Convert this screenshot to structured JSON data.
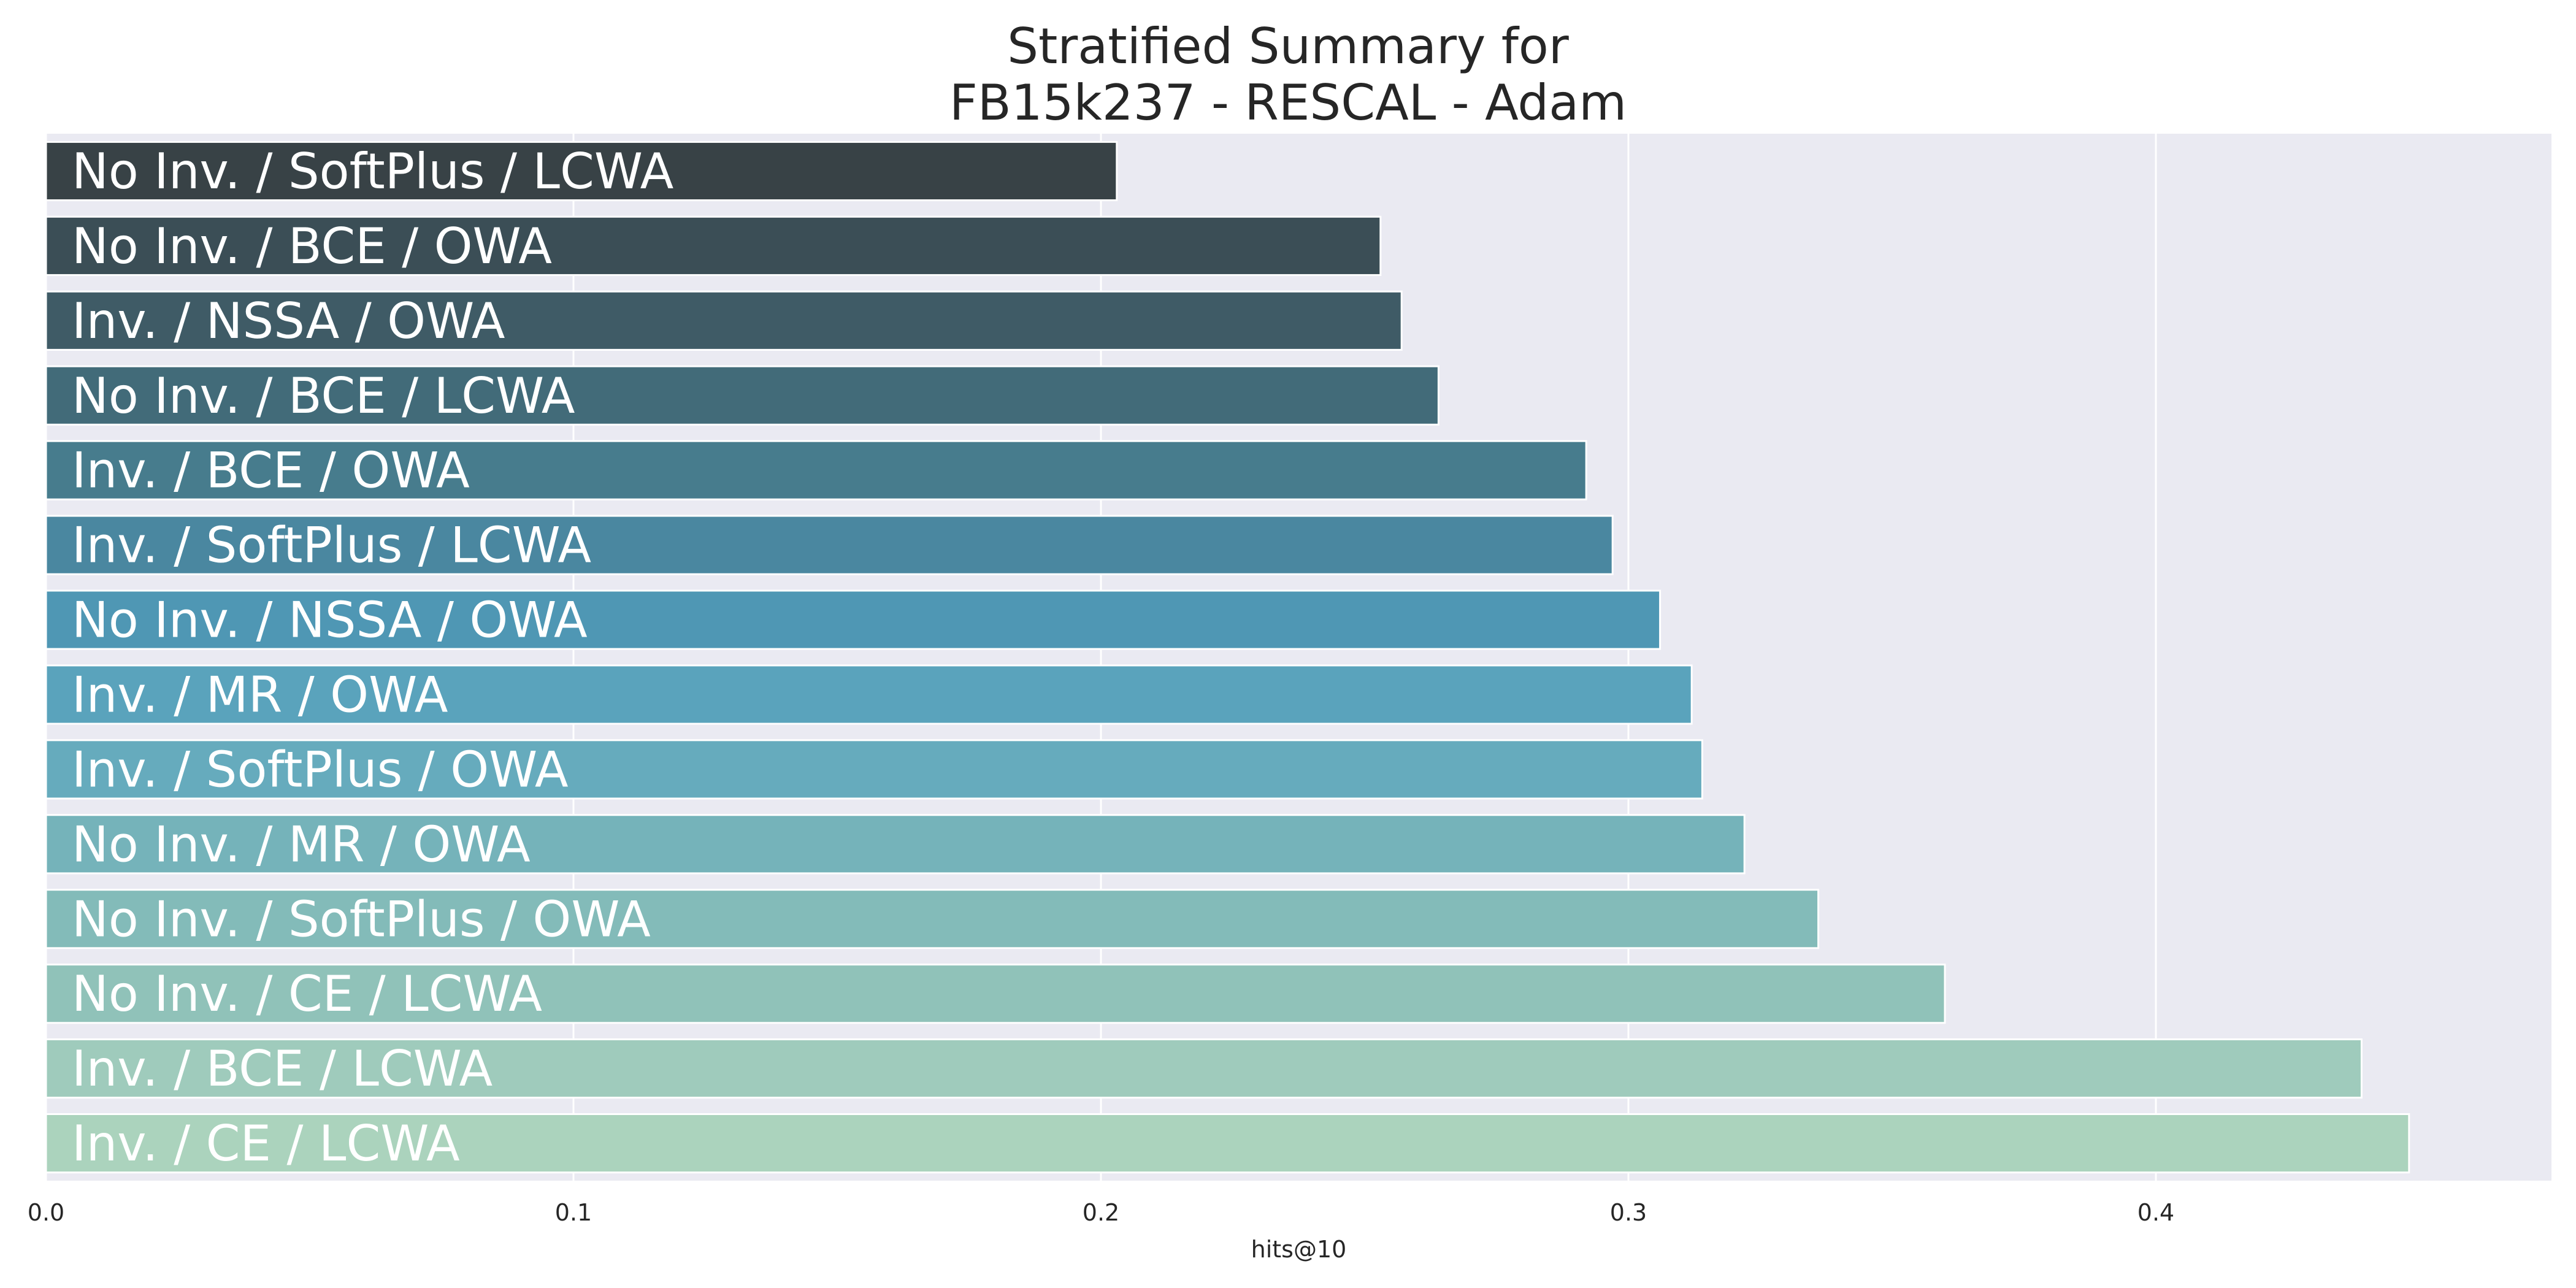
{
  "chart_data": {
    "type": "bar",
    "orientation": "horizontal",
    "title": "Stratified Summary for\nFB15k237 - RESCAL - Adam",
    "title_lines": [
      "Stratified Summary for",
      "FB15k237 - RESCAL - Adam"
    ],
    "xlabel": "hits@10",
    "ylabel": "",
    "xlim": [
      0.0,
      0.475
    ],
    "xticks": [
      0.0,
      0.1,
      0.2,
      0.3,
      0.4
    ],
    "xtick_labels": [
      "0.0",
      "0.1",
      "0.2",
      "0.3",
      "0.4"
    ],
    "grid": true,
    "legend": "none",
    "categories": [
      "No Inv. / SoftPlus / LCWA",
      "No Inv. / BCE / OWA",
      "Inv. / NSSA / OWA",
      "No Inv. / BCE / LCWA",
      "Inv. / BCE / OWA",
      "Inv. / SoftPlus / LCWA",
      "No Inv. / NSSA / OWA",
      "Inv. / MR / OWA",
      "Inv. / SoftPlus / OWA",
      "No Inv. / MR / OWA",
      "No Inv. / SoftPlus / OWA",
      "No Inv. / CE / LCWA",
      "Inv. / BCE / LCWA",
      "Inv. / CE / LCWA"
    ],
    "values": [
      0.203,
      0.253,
      0.257,
      0.264,
      0.292,
      0.297,
      0.306,
      0.312,
      0.314,
      0.322,
      0.336,
      0.36,
      0.439,
      0.448
    ],
    "colors": [
      "#384246",
      "#3b4e56",
      "#3f5b66",
      "#426b79",
      "#477c8d",
      "#4a87a0",
      "#4f97b4",
      "#5aa3bc",
      "#66abbd",
      "#75b3ba",
      "#83bbb9",
      "#90c2b9",
      "#9fcbbc",
      "#abd3bd"
    ],
    "plot_background": "#eaeaf2",
    "grid_color": "#ffffff"
  }
}
